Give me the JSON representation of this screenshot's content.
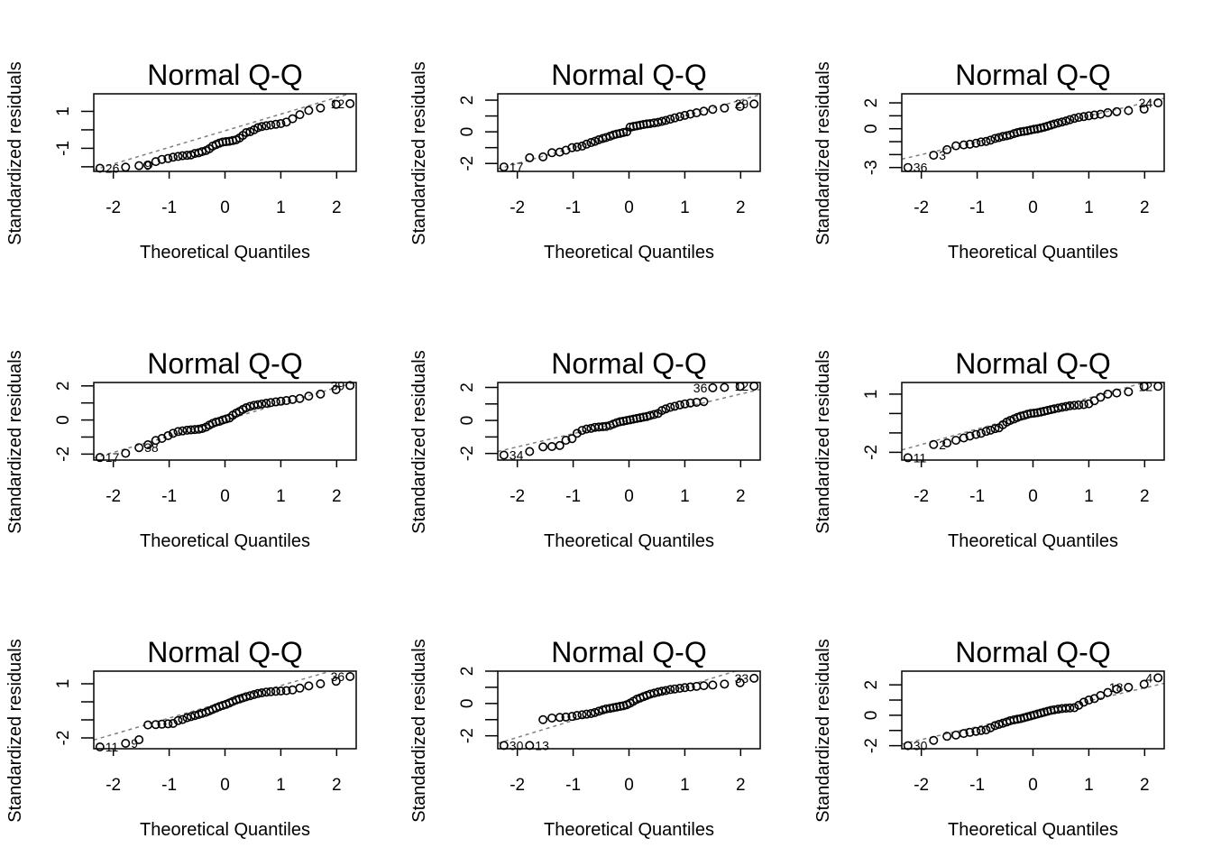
{
  "chart_data": [
    {
      "type": "scatter",
      "title": "Normal Q-Q",
      "xlabel": "Theoretical Quantiles",
      "ylabel": "Standardized residuals",
      "xlim": [
        -2.35,
        2.35
      ],
      "ylim": [
        -2.25,
        1.95
      ],
      "xticks": [
        -2,
        -1,
        0,
        1,
        2
      ],
      "xtick_labels": [
        "-2",
        "-1",
        "0",
        "1",
        "2"
      ],
      "yticks": [
        -2,
        -1,
        0,
        1
      ],
      "ytick_labels": [
        "",
        "-1",
        "",
        "1"
      ],
      "x": [
        -2.24,
        -1.78,
        -1.54,
        -1.38,
        -1.24,
        -1.13,
        -1.02,
        -0.93,
        -0.84,
        -0.76,
        -0.68,
        -0.61,
        -0.54,
        -0.47,
        -0.41,
        -0.34,
        -0.28,
        -0.22,
        -0.16,
        -0.1,
        -0.04,
        0.02,
        0.08,
        0.14,
        0.2,
        0.26,
        0.32,
        0.38,
        0.45,
        0.52,
        0.59,
        0.66,
        0.74,
        0.82,
        0.91,
        1.0,
        1.1,
        1.21,
        1.34,
        1.5,
        1.71,
        1.99,
        2.24
      ],
      "y": [
        -2.08,
        -2.02,
        -1.94,
        -1.9,
        -1.72,
        -1.6,
        -1.55,
        -1.48,
        -1.44,
        -1.4,
        -1.38,
        -1.36,
        -1.28,
        -1.24,
        -1.18,
        -1.12,
        -1.02,
        -0.88,
        -0.8,
        -0.72,
        -0.66,
        -0.64,
        -0.62,
        -0.58,
        -0.54,
        -0.44,
        -0.3,
        -0.15,
        -0.1,
        0.0,
        0.12,
        0.18,
        0.22,
        0.26,
        0.3,
        0.34,
        0.42,
        0.6,
        0.82,
        1.05,
        1.18,
        1.38,
        1.42
      ],
      "refline": {
        "slope": 0.9,
        "intercept": -0.05
      },
      "labels": [
        {
          "i": 0,
          "text": "26"
        },
        {
          "i": 2,
          "text": "9"
        },
        {
          "i": 42,
          "text": "12"
        }
      ]
    },
    {
      "type": "scatter",
      "title": "Normal Q-Q",
      "xlabel": "Theoretical Quantiles",
      "ylabel": "Standardized residuals",
      "xlim": [
        -2.35,
        2.35
      ],
      "ylim": [
        -2.5,
        2.4
      ],
      "xticks": [
        -2,
        -1,
        0,
        1,
        2
      ],
      "xtick_labels": [
        "-2",
        "-1",
        "0",
        "1",
        "2"
      ],
      "yticks": [
        -2,
        -1,
        0,
        1,
        2
      ],
      "ytick_labels": [
        "-2",
        "",
        "0",
        "",
        "2"
      ],
      "x": [
        -2.24,
        -1.78,
        -1.54,
        -1.38,
        -1.24,
        -1.13,
        -1.02,
        -0.93,
        -0.84,
        -0.76,
        -0.68,
        -0.61,
        -0.54,
        -0.47,
        -0.41,
        -0.34,
        -0.28,
        -0.22,
        -0.16,
        -0.1,
        -0.04,
        0.02,
        0.08,
        0.14,
        0.2,
        0.26,
        0.32,
        0.38,
        0.45,
        0.52,
        0.59,
        0.66,
        0.74,
        0.82,
        0.91,
        1.0,
        1.1,
        1.21,
        1.34,
        1.5,
        1.71,
        1.99,
        2.24
      ],
      "y": [
        -2.22,
        -1.64,
        -1.58,
        -1.32,
        -1.28,
        -1.16,
        -1.0,
        -0.96,
        -0.9,
        -0.78,
        -0.68,
        -0.6,
        -0.5,
        -0.42,
        -0.36,
        -0.28,
        -0.2,
        -0.14,
        -0.1,
        -0.04,
        0.0,
        0.3,
        0.34,
        0.38,
        0.42,
        0.46,
        0.5,
        0.52,
        0.56,
        0.6,
        0.66,
        0.72,
        0.8,
        0.88,
        0.96,
        1.04,
        1.12,
        1.2,
        1.3,
        1.42,
        1.5,
        1.6,
        1.76
      ],
      "refline": {
        "slope": 1.0,
        "intercept": 0.0
      },
      "labels": [
        {
          "i": 0,
          "text": "17"
        },
        {
          "i": 42,
          "text": "29"
        }
      ]
    },
    {
      "type": "scatter",
      "title": "Normal Q-Q",
      "xlabel": "Theoretical Quantiles",
      "ylabel": "Standardized residuals",
      "xlim": [
        -2.35,
        2.35
      ],
      "ylim": [
        -3.3,
        2.7
      ],
      "xticks": [
        -2,
        -1,
        0,
        1,
        2
      ],
      "xtick_labels": [
        "-2",
        "-1",
        "0",
        "1",
        "2"
      ],
      "yticks": [
        -3,
        -2,
        -1,
        0,
        1,
        2
      ],
      "ytick_labels": [
        "-3",
        "",
        "",
        "0",
        "",
        "2"
      ],
      "x": [
        -2.24,
        -1.78,
        -1.54,
        -1.38,
        -1.24,
        -1.13,
        -1.02,
        -0.93,
        -0.84,
        -0.76,
        -0.68,
        -0.61,
        -0.54,
        -0.47,
        -0.41,
        -0.34,
        -0.28,
        -0.22,
        -0.16,
        -0.1,
        -0.04,
        0.02,
        0.08,
        0.14,
        0.2,
        0.26,
        0.32,
        0.38,
        0.45,
        0.52,
        0.59,
        0.66,
        0.74,
        0.82,
        0.91,
        1.0,
        1.1,
        1.21,
        1.34,
        1.5,
        1.71,
        1.99,
        2.24
      ],
      "y": [
        -3.0,
        -2.05,
        -1.62,
        -1.32,
        -1.25,
        -1.2,
        -1.12,
        -1.02,
        -0.98,
        -0.88,
        -0.75,
        -0.68,
        -0.6,
        -0.54,
        -0.48,
        -0.38,
        -0.3,
        -0.24,
        -0.2,
        -0.16,
        -0.1,
        -0.04,
        0.0,
        0.06,
        0.12,
        0.2,
        0.28,
        0.36,
        0.44,
        0.52,
        0.6,
        0.7,
        0.8,
        0.88,
        0.94,
        1.0,
        1.06,
        1.12,
        1.24,
        1.32,
        1.4,
        1.52,
        2.0
      ],
      "refline": {
        "slope": 1.0,
        "intercept": 0.0
      },
      "labels": [
        {
          "i": 0,
          "text": "36"
        },
        {
          "i": 1,
          "text": "3"
        },
        {
          "i": 42,
          "text": "24"
        }
      ]
    },
    {
      "type": "scatter",
      "title": "Normal Q-Q",
      "xlabel": "Theoretical Quantiles",
      "ylabel": "Standardized residuals",
      "xlim": [
        -2.35,
        2.35
      ],
      "ylim": [
        -2.35,
        2.2
      ],
      "xticks": [
        -2,
        -1,
        0,
        1,
        2
      ],
      "xtick_labels": [
        "-2",
        "-1",
        "0",
        "1",
        "2"
      ],
      "yticks": [
        -2,
        -1,
        0,
        1,
        2
      ],
      "ytick_labels": [
        "-2",
        "",
        "0",
        "",
        "2"
      ],
      "x": [
        -2.24,
        -1.78,
        -1.54,
        -1.38,
        -1.24,
        -1.13,
        -1.02,
        -0.93,
        -0.84,
        -0.76,
        -0.68,
        -0.61,
        -0.54,
        -0.47,
        -0.41,
        -0.34,
        -0.28,
        -0.22,
        -0.16,
        -0.1,
        -0.04,
        0.02,
        0.08,
        0.14,
        0.2,
        0.26,
        0.32,
        0.38,
        0.45,
        0.52,
        0.59,
        0.66,
        0.74,
        0.82,
        0.91,
        1.0,
        1.1,
        1.21,
        1.34,
        1.5,
        1.71,
        1.99,
        2.24
      ],
      "y": [
        -2.2,
        -1.95,
        -1.62,
        -1.45,
        -1.2,
        -1.08,
        -0.92,
        -0.78,
        -0.68,
        -0.64,
        -0.6,
        -0.58,
        -0.56,
        -0.54,
        -0.5,
        -0.42,
        -0.3,
        -0.2,
        -0.12,
        -0.08,
        0.0,
        0.06,
        0.12,
        0.28,
        0.4,
        0.5,
        0.62,
        0.72,
        0.8,
        0.86,
        0.9,
        0.94,
        0.98,
        1.02,
        1.06,
        1.1,
        1.14,
        1.2,
        1.26,
        1.4,
        1.52,
        1.78,
        2.02
      ],
      "refline": {
        "slope": 0.95,
        "intercept": 0.0
      },
      "labels": [
        {
          "i": 0,
          "text": "17"
        },
        {
          "i": 2,
          "text": "38"
        },
        {
          "i": 42,
          "text": "39"
        }
      ]
    },
    {
      "type": "scatter",
      "title": "Normal Q-Q",
      "xlabel": "Theoretical Quantiles",
      "ylabel": "Standardized residuals",
      "xlim": [
        -2.35,
        2.35
      ],
      "ylim": [
        -2.4,
        2.3
      ],
      "xticks": [
        -2,
        -1,
        0,
        1,
        2
      ],
      "xtick_labels": [
        "-2",
        "-1",
        "0",
        "1",
        "2"
      ],
      "yticks": [
        -2,
        -1,
        0,
        1,
        2
      ],
      "ytick_labels": [
        "-2",
        "",
        "0",
        "",
        "2"
      ],
      "x": [
        -2.24,
        -1.78,
        -1.54,
        -1.38,
        -1.24,
        -1.13,
        -1.02,
        -0.93,
        -0.84,
        -0.76,
        -0.68,
        -0.61,
        -0.54,
        -0.47,
        -0.41,
        -0.34,
        -0.28,
        -0.22,
        -0.16,
        -0.1,
        -0.04,
        0.02,
        0.08,
        0.14,
        0.2,
        0.26,
        0.32,
        0.38,
        0.45,
        0.52,
        0.59,
        0.66,
        0.74,
        0.82,
        0.91,
        1.0,
        1.1,
        1.21,
        1.34,
        1.5,
        1.71,
        1.99,
        2.24
      ],
      "y": [
        -2.1,
        -1.88,
        -1.6,
        -1.58,
        -1.52,
        -1.2,
        -1.1,
        -0.78,
        -0.6,
        -0.52,
        -0.48,
        -0.42,
        -0.4,
        -0.38,
        -0.36,
        -0.3,
        -0.22,
        -0.14,
        -0.08,
        -0.04,
        0.0,
        0.04,
        0.08,
        0.12,
        0.16,
        0.2,
        0.24,
        0.3,
        0.36,
        0.42,
        0.6,
        0.7,
        0.8,
        0.86,
        0.94,
        1.0,
        1.06,
        1.1,
        1.14,
        1.98,
        2.0,
        2.06,
        2.08
      ],
      "refline": {
        "slope": 0.8,
        "intercept": 0.0
      },
      "labels": [
        {
          "i": 0,
          "text": "34"
        },
        {
          "i": 39,
          "text": "36"
        },
        {
          "i": 42,
          "text": "12"
        }
      ]
    },
    {
      "type": "scatter",
      "title": "Normal Q-Q",
      "xlabel": "Theoretical Quantiles",
      "ylabel": "Standardized residuals",
      "xlim": [
        -2.35,
        2.35
      ],
      "ylim": [
        -2.4,
        1.6
      ],
      "xticks": [
        -2,
        -1,
        0,
        1,
        2
      ],
      "xtick_labels": [
        "-2",
        "-1",
        "0",
        "1",
        "2"
      ],
      "yticks": [
        -2,
        -1,
        0,
        1
      ],
      "ytick_labels": [
        "-2",
        "",
        "",
        "1"
      ],
      "x": [
        -2.24,
        -1.78,
        -1.54,
        -1.38,
        -1.24,
        -1.13,
        -1.02,
        -0.93,
        -0.84,
        -0.76,
        -0.68,
        -0.61,
        -0.54,
        -0.47,
        -0.41,
        -0.34,
        -0.28,
        -0.22,
        -0.16,
        -0.1,
        -0.04,
        0.02,
        0.08,
        0.14,
        0.2,
        0.26,
        0.32,
        0.38,
        0.45,
        0.52,
        0.59,
        0.66,
        0.74,
        0.82,
        0.91,
        1.0,
        1.1,
        1.21,
        1.34,
        1.5,
        1.71,
        1.99,
        2.24
      ],
      "y": [
        -2.28,
        -1.6,
        -1.52,
        -1.38,
        -1.26,
        -1.16,
        -1.08,
        -1.02,
        -0.92,
        -0.86,
        -0.78,
        -0.74,
        -0.58,
        -0.44,
        -0.36,
        -0.28,
        -0.2,
        -0.14,
        -0.1,
        -0.04,
        0.0,
        0.02,
        0.04,
        0.08,
        0.12,
        0.16,
        0.2,
        0.24,
        0.28,
        0.32,
        0.36,
        0.4,
        0.42,
        0.44,
        0.46,
        0.5,
        0.66,
        0.84,
        1.0,
        1.06,
        1.12,
        1.4,
        1.4
      ],
      "refline": {
        "slope": 0.8,
        "intercept": 0.0
      },
      "labels": [
        {
          "i": 0,
          "text": "11"
        },
        {
          "i": 1,
          "text": "2"
        },
        {
          "i": 42,
          "text": "12"
        }
      ]
    },
    {
      "type": "scatter",
      "title": "Normal Q-Q",
      "xlabel": "Theoretical Quantiles",
      "ylabel": "Standardized residuals",
      "xlim": [
        -2.35,
        2.35
      ],
      "ylim": [
        -2.6,
        1.7
      ],
      "xticks": [
        -2,
        -1,
        0,
        1,
        2
      ],
      "xtick_labels": [
        "-2",
        "-1",
        "0",
        "1",
        "2"
      ],
      "yticks": [
        -2,
        -1,
        0,
        1
      ],
      "ytick_labels": [
        "-2",
        "",
        "",
        "1"
      ],
      "x": [
        -2.24,
        -1.78,
        -1.54,
        -1.38,
        -1.24,
        -1.13,
        -1.02,
        -0.93,
        -0.84,
        -0.76,
        -0.68,
        -0.61,
        -0.54,
        -0.47,
        -0.41,
        -0.34,
        -0.28,
        -0.22,
        -0.16,
        -0.1,
        -0.04,
        0.02,
        0.08,
        0.14,
        0.2,
        0.26,
        0.32,
        0.38,
        0.45,
        0.52,
        0.59,
        0.66,
        0.74,
        0.82,
        0.91,
        1.0,
        1.1,
        1.21,
        1.34,
        1.5,
        1.71,
        1.99,
        2.24
      ],
      "y": [
        -2.5,
        -2.3,
        -2.1,
        -1.28,
        -1.26,
        -1.24,
        -1.22,
        -1.2,
        -1.04,
        -0.98,
        -0.88,
        -0.82,
        -0.76,
        -0.7,
        -0.64,
        -0.58,
        -0.5,
        -0.42,
        -0.34,
        -0.26,
        -0.2,
        -0.14,
        -0.06,
        0.02,
        0.1,
        0.16,
        0.22,
        0.28,
        0.34,
        0.4,
        0.46,
        0.5,
        0.54,
        0.56,
        0.58,
        0.6,
        0.62,
        0.66,
        0.76,
        0.88,
        1.0,
        1.14,
        1.4
      ],
      "refline": {
        "slope": 0.9,
        "intercept": 0.0
      },
      "labels": [
        {
          "i": 0,
          "text": "11"
        },
        {
          "i": 1,
          "text": "9"
        },
        {
          "i": 42,
          "text": "36"
        }
      ]
    },
    {
      "type": "scatter",
      "title": "Normal Q-Q",
      "xlabel": "Theoretical Quantiles",
      "ylabel": "Standardized residuals",
      "xlim": [
        -2.35,
        2.35
      ],
      "ylim": [
        -2.8,
        2.0
      ],
      "xticks": [
        -2,
        -1,
        0,
        1,
        2
      ],
      "xtick_labels": [
        "-2",
        "-1",
        "0",
        "1",
        "2"
      ],
      "yticks": [
        -2,
        -1,
        0,
        1,
        2
      ],
      "ytick_labels": [
        "-2",
        "",
        "0",
        "",
        "2"
      ],
      "x": [
        -2.24,
        -1.78,
        -1.54,
        -1.38,
        -1.24,
        -1.13,
        -1.02,
        -0.93,
        -0.84,
        -0.76,
        -0.68,
        -0.61,
        -0.54,
        -0.47,
        -0.41,
        -0.34,
        -0.28,
        -0.22,
        -0.16,
        -0.1,
        -0.04,
        0.02,
        0.08,
        0.14,
        0.2,
        0.26,
        0.32,
        0.38,
        0.45,
        0.52,
        0.59,
        0.66,
        0.74,
        0.82,
        0.91,
        1.0,
        1.1,
        1.21,
        1.34,
        1.5,
        1.71,
        1.99,
        2.24
      ],
      "y": [
        -2.6,
        -2.6,
        -1.0,
        -0.9,
        -0.86,
        -0.84,
        -0.8,
        -0.74,
        -0.7,
        -0.66,
        -0.62,
        -0.56,
        -0.48,
        -0.4,
        -0.34,
        -0.3,
        -0.26,
        -0.22,
        -0.18,
        -0.14,
        -0.08,
        0.02,
        0.14,
        0.26,
        0.34,
        0.42,
        0.5,
        0.58,
        0.64,
        0.7,
        0.76,
        0.8,
        0.86,
        0.9,
        0.94,
        0.98,
        1.02,
        1.06,
        1.1,
        1.14,
        1.2,
        1.28,
        1.56
      ],
      "refline": {
        "slope": 1.05,
        "intercept": 0.0
      },
      "labels": [
        {
          "i": 0,
          "text": "30"
        },
        {
          "i": 1,
          "text": "13"
        },
        {
          "i": 42,
          "text": "33"
        }
      ]
    },
    {
      "type": "scatter",
      "title": "Normal Q-Q",
      "xlabel": "Theoretical Quantiles",
      "ylabel": "Standardized residuals",
      "xlim": [
        -2.35,
        2.35
      ],
      "ylim": [
        -2.2,
        2.9
      ],
      "xticks": [
        -2,
        -1,
        0,
        1,
        2
      ],
      "xtick_labels": [
        "-2",
        "-1",
        "0",
        "1",
        "2"
      ],
      "yticks": [
        -2,
        -1,
        0,
        1,
        2
      ],
      "ytick_labels": [
        "-2",
        "",
        "0",
        "",
        "2"
      ],
      "x": [
        -2.24,
        -1.78,
        -1.54,
        -1.38,
        -1.24,
        -1.13,
        -1.02,
        -0.93,
        -0.84,
        -0.76,
        -0.68,
        -0.61,
        -0.54,
        -0.47,
        -0.41,
        -0.34,
        -0.28,
        -0.22,
        -0.16,
        -0.1,
        -0.04,
        0.02,
        0.08,
        0.14,
        0.2,
        0.26,
        0.32,
        0.38,
        0.45,
        0.52,
        0.59,
        0.66,
        0.74,
        0.82,
        0.91,
        1.0,
        1.1,
        1.21,
        1.34,
        1.5,
        1.71,
        1.99,
        2.24
      ],
      "y": [
        -2.0,
        -1.65,
        -1.38,
        -1.3,
        -1.2,
        -1.12,
        -1.06,
        -1.0,
        -0.96,
        -0.82,
        -0.68,
        -0.6,
        -0.52,
        -0.44,
        -0.36,
        -0.3,
        -0.26,
        -0.22,
        -0.16,
        -0.1,
        -0.04,
        0.02,
        0.08,
        0.14,
        0.2,
        0.26,
        0.32,
        0.36,
        0.4,
        0.44,
        0.46,
        0.48,
        0.5,
        0.66,
        0.86,
        1.0,
        1.1,
        1.3,
        1.5,
        1.72,
        1.84,
        2.04,
        2.46
      ],
      "refline": {
        "slope": 0.85,
        "intercept": 0.1
      },
      "labels": [
        {
          "i": 0,
          "text": "30"
        },
        {
          "i": 40,
          "text": "18"
        },
        {
          "i": 42,
          "text": "4"
        }
      ]
    }
  ]
}
